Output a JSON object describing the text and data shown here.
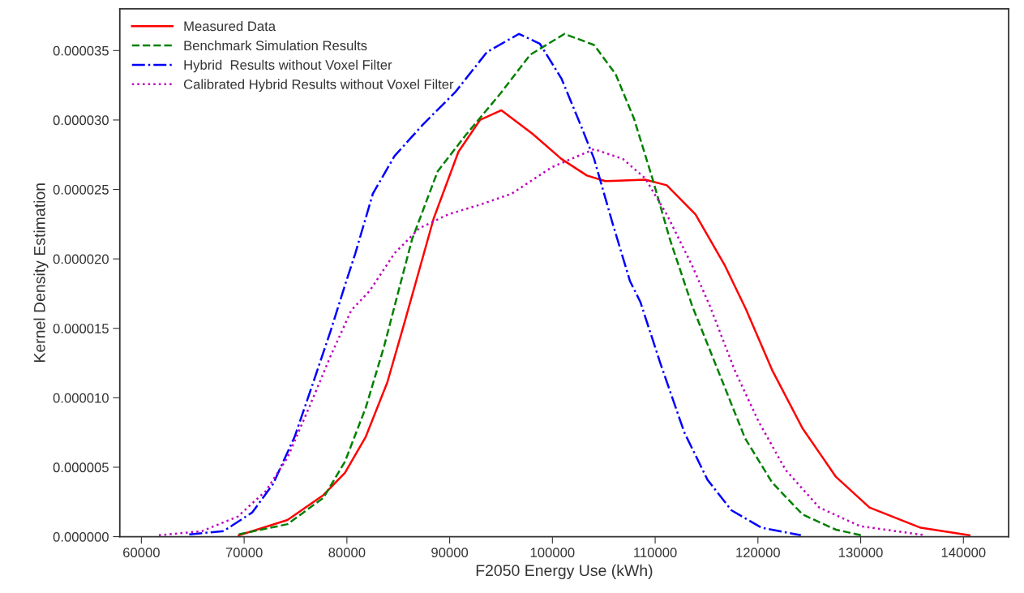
{
  "chart_data": {
    "type": "line",
    "xlabel": "F2050 Energy Use (kWh)",
    "ylabel": "Kernel Density Estimation",
    "xlim": [
      57900,
      144400
    ],
    "xticks": [
      60000,
      70000,
      80000,
      90000,
      100000,
      110000,
      120000,
      130000,
      140000
    ],
    "ylim": [
      0,
      3.8e-05
    ],
    "yticks": [
      {
        "value": 0,
        "label": "0.000000"
      },
      {
        "value": 5e-06,
        "label": "0.000005"
      },
      {
        "value": 1e-05,
        "label": "0.000010"
      },
      {
        "value": 1.5e-05,
        "label": "0.000015"
      },
      {
        "value": 2e-05,
        "label": "0.000020"
      },
      {
        "value": 2.5e-05,
        "label": "0.000025"
      },
      {
        "value": 3e-05,
        "label": "0.000030"
      },
      {
        "value": 3.5e-05,
        "label": "0.000035"
      }
    ],
    "grid": false,
    "legend": "top left",
    "marker": "none",
    "series": [
      {
        "name": "Measured Data",
        "color": "#ff0000",
        "line_style": "solid",
        "x": [
          69480,
          74220,
          77720,
          79810,
          81840,
          83930,
          85640,
          88440,
          90850,
          92950,
          95040,
          98070,
          100870,
          103360,
          105140,
          109030,
          111130,
          113930,
          116800,
          118820,
          121380,
          124340,
          127600,
          130860,
          135840,
          140580
        ],
        "values": [
          1e-07,
          1.2e-06,
          3e-06,
          4.6e-06,
          7.2e-06,
          1.11e-05,
          1.55e-05,
          2.29e-05,
          2.77e-05,
          3e-05,
          3.07e-05,
          2.9e-05,
          2.72e-05,
          2.6e-05,
          2.56e-05,
          2.57e-05,
          2.53e-05,
          2.32e-05,
          1.95e-05,
          1.64e-05,
          1.2e-05,
          7.8e-06,
          4.3e-06,
          2.1e-06,
          6.4e-07,
          1e-07
        ]
      },
      {
        "name": "Benchmark Simulation Results",
        "color": "#008000",
        "line_style": "dashed",
        "x": [
          69480,
          74220,
          77720,
          79810,
          81840,
          83620,
          85170,
          86340,
          88830,
          91550,
          95040,
          97840,
          101180,
          104060,
          106150,
          107940,
          109730,
          111440,
          113610,
          116100,
          118740,
          121380,
          124340,
          127600,
          130080
        ],
        "values": [
          1.7e-07,
          9e-07,
          2.8e-06,
          5.4e-06,
          9.3e-06,
          1.37e-05,
          1.81e-05,
          2.14e-05,
          2.63e-05,
          2.89e-05,
          3.2e-05,
          3.47e-05,
          3.62e-05,
          3.54e-05,
          3.33e-05,
          3.01e-05,
          2.58e-05,
          2.14e-05,
          1.66e-05,
          1.2e-05,
          7.1e-06,
          3.9e-06,
          1.6e-06,
          5e-07,
          1e-07
        ]
      },
      {
        "name": "Hybrid  Results without Voxel Filter",
        "color": "#0000ff",
        "line_style": "dashdot",
        "x": [
          64660,
          68000,
          70800,
          72820,
          74920,
          76630,
          78410,
          79810,
          80820,
          82530,
          84630,
          87430,
          90540,
          93640,
          96750,
          98770,
          100870,
          102660,
          104060,
          105840,
          107550,
          108560,
          110500,
          112840,
          115090,
          117420,
          120370,
          124180
        ],
        "values": [
          1.7e-07,
          4e-07,
          1.75e-06,
          3.8e-06,
          7.2e-06,
          1.09e-05,
          1.48e-05,
          1.81e-05,
          2.04e-05,
          2.47e-05,
          2.74e-05,
          2.97e-05,
          3.2e-05,
          3.49e-05,
          3.62e-05,
          3.55e-05,
          3.3e-05,
          2.98e-05,
          2.72e-05,
          2.26e-05,
          1.84e-05,
          1.69e-05,
          1.25e-05,
          7.5e-06,
          4.1e-06,
          1.9e-06,
          6.4e-07,
          1e-07
        ]
      },
      {
        "name": "Calibrated Hybrid Results without Voxel Filter",
        "color": "#bf00bf",
        "line_style": "dotted",
        "x": [
          61710,
          65910,
          69400,
          72120,
          74220,
          76320,
          78410,
          80430,
          82220,
          84630,
          87040,
          89840,
          92950,
          96050,
          99940,
          104060,
          106850,
          109030,
          111130,
          113610,
          115330,
          117730,
          120060,
          122700,
          125970,
          129930,
          136300
        ],
        "values": [
          1e-07,
          4e-07,
          1.46e-06,
          3.3e-06,
          5.7e-06,
          9.3e-06,
          1.3e-05,
          1.63e-05,
          1.77e-05,
          2.04e-05,
          2.22e-05,
          2.32e-05,
          2.39e-05,
          2.47e-05,
          2.66e-05,
          2.79e-05,
          2.72e-05,
          2.58e-05,
          2.32e-05,
          1.95e-05,
          1.66e-05,
          1.2e-05,
          8.3e-06,
          4.8e-06,
          2.1e-06,
          7.6e-07,
          1e-07
        ]
      }
    ]
  }
}
